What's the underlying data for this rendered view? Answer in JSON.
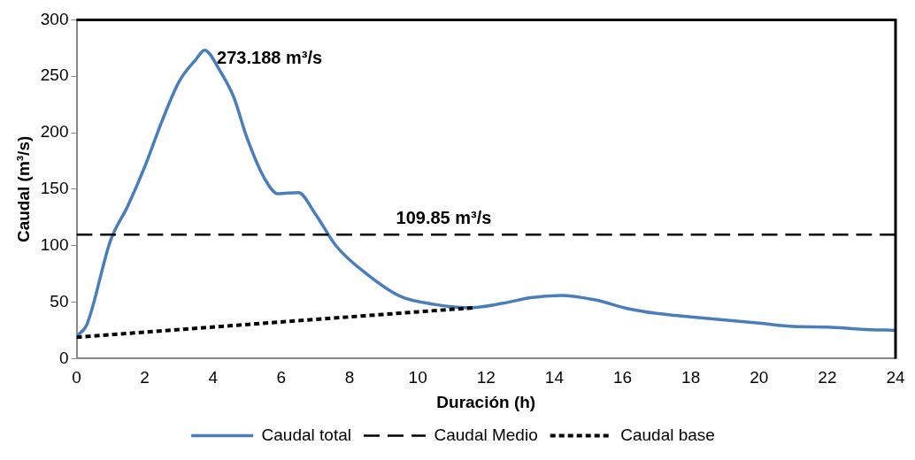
{
  "chart_data": {
    "type": "line",
    "xlabel": "Duración (h)",
    "ylabel": "Caudal (m³/s)",
    "xlim": [
      0,
      24
    ],
    "xticks": [
      0,
      2,
      4,
      6,
      8,
      10,
      12,
      14,
      16,
      18,
      20,
      22,
      24
    ],
    "ylim": [
      0,
      300
    ],
    "yticks": [
      0,
      50,
      100,
      150,
      200,
      250,
      300
    ],
    "grid": false,
    "legend": "bottom",
    "marker": "none",
    "series": [
      {
        "name": "Caudal total",
        "color": "#4a7ebb",
        "line_style": "solid",
        "x": [
          0,
          0.3,
          1,
          1.5,
          2,
          2.5,
          3,
          3.5,
          3.75,
          4.2,
          4.6,
          5,
          5.5,
          5.9,
          6.5,
          7,
          7.6,
          8.5,
          9.5,
          10.5,
          11.5,
          12.5,
          13.3,
          14.2,
          15.2,
          16.2,
          17,
          18,
          20,
          21,
          22,
          23,
          24
        ],
        "values": [
          20,
          30,
          105,
          135,
          170,
          210,
          245,
          265,
          273.188,
          255,
          232,
          195,
          160,
          146,
          147,
          128,
          100,
          75,
          55,
          48,
          45,
          49,
          54,
          56,
          52,
          44,
          40,
          37,
          31.5,
          28.5,
          28,
          26,
          25
        ]
      },
      {
        "name": "Caudal Medio",
        "color": "#000000",
        "line_style": "dashed",
        "x": [
          0,
          24
        ],
        "values": [
          109.85,
          109.85
        ]
      },
      {
        "name": "Caudal base",
        "color": "#000000",
        "line_style": "dotted",
        "x": [
          0,
          11.6
        ],
        "values": [
          19,
          45
        ]
      }
    ],
    "annotations": [
      {
        "text": "273.188 m³/s",
        "x": 3.75,
        "y": 273.188
      },
      {
        "text": "109.85 m³/s",
        "x": 9,
        "y": 109.85
      }
    ]
  }
}
